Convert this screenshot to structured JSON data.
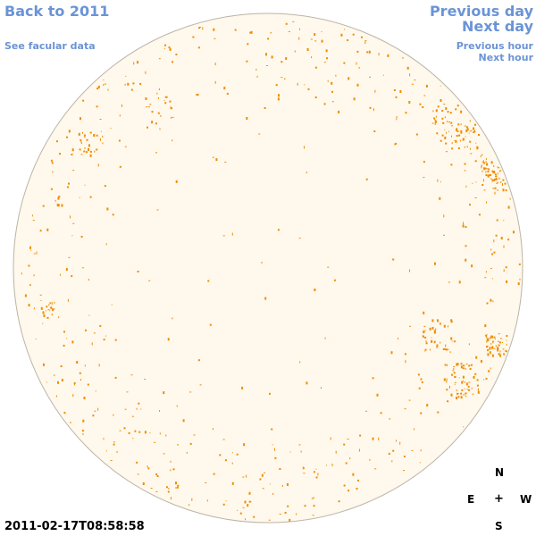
{
  "nav": {
    "back_label": "Back to 2011",
    "facular_label": "See facular data",
    "previous_day_label": "Previous day",
    "next_day_label": "Next day",
    "previous_hour_label": "Previous hour",
    "next_hour_label": "Next hour"
  },
  "timestamp": "2011-02-17T08:58:58",
  "compass": {
    "north": "N",
    "east": "E",
    "center": "+",
    "west": "W",
    "south": "S"
  },
  "colors": {
    "link": "#6b94d6",
    "disk_fill": "#fff8ec",
    "disk_edge": "#bcb4a8",
    "facula": "#f08c00"
  }
}
